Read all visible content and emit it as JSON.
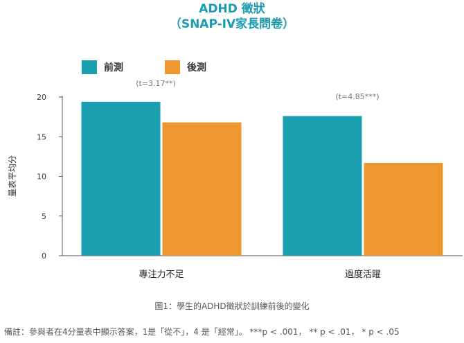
{
  "chart_data": {
    "type": "bar",
    "title": "ADHD 徵狀",
    "subtitle": "（SNAP-IV家長問卷）",
    "ylabel": "量表平均分",
    "categories": [
      "專注力不足",
      "過度活躍"
    ],
    "series": [
      {
        "name": "前測",
        "color": "#1a9fb0",
        "values": [
          19.4,
          17.6
        ]
      },
      {
        "name": "後測",
        "color": "#ee9630",
        "values": [
          16.8,
          11.7
        ]
      }
    ],
    "annotations": [
      "(t=3.17**)",
      "(t=4.85***)"
    ],
    "ylim": [
      0,
      20
    ],
    "yticks": [
      "0",
      "5",
      "10",
      "15",
      "20"
    ],
    "legend_position": "top-left"
  },
  "caption": "圖1：學生的ADHD徵狀於訓練前後的變化",
  "footnote": "備註：參與者在4分量表中顯示答案，1是「從不」，4 是「經常」。 ***p < .001， ** p < .01， * p < .05"
}
